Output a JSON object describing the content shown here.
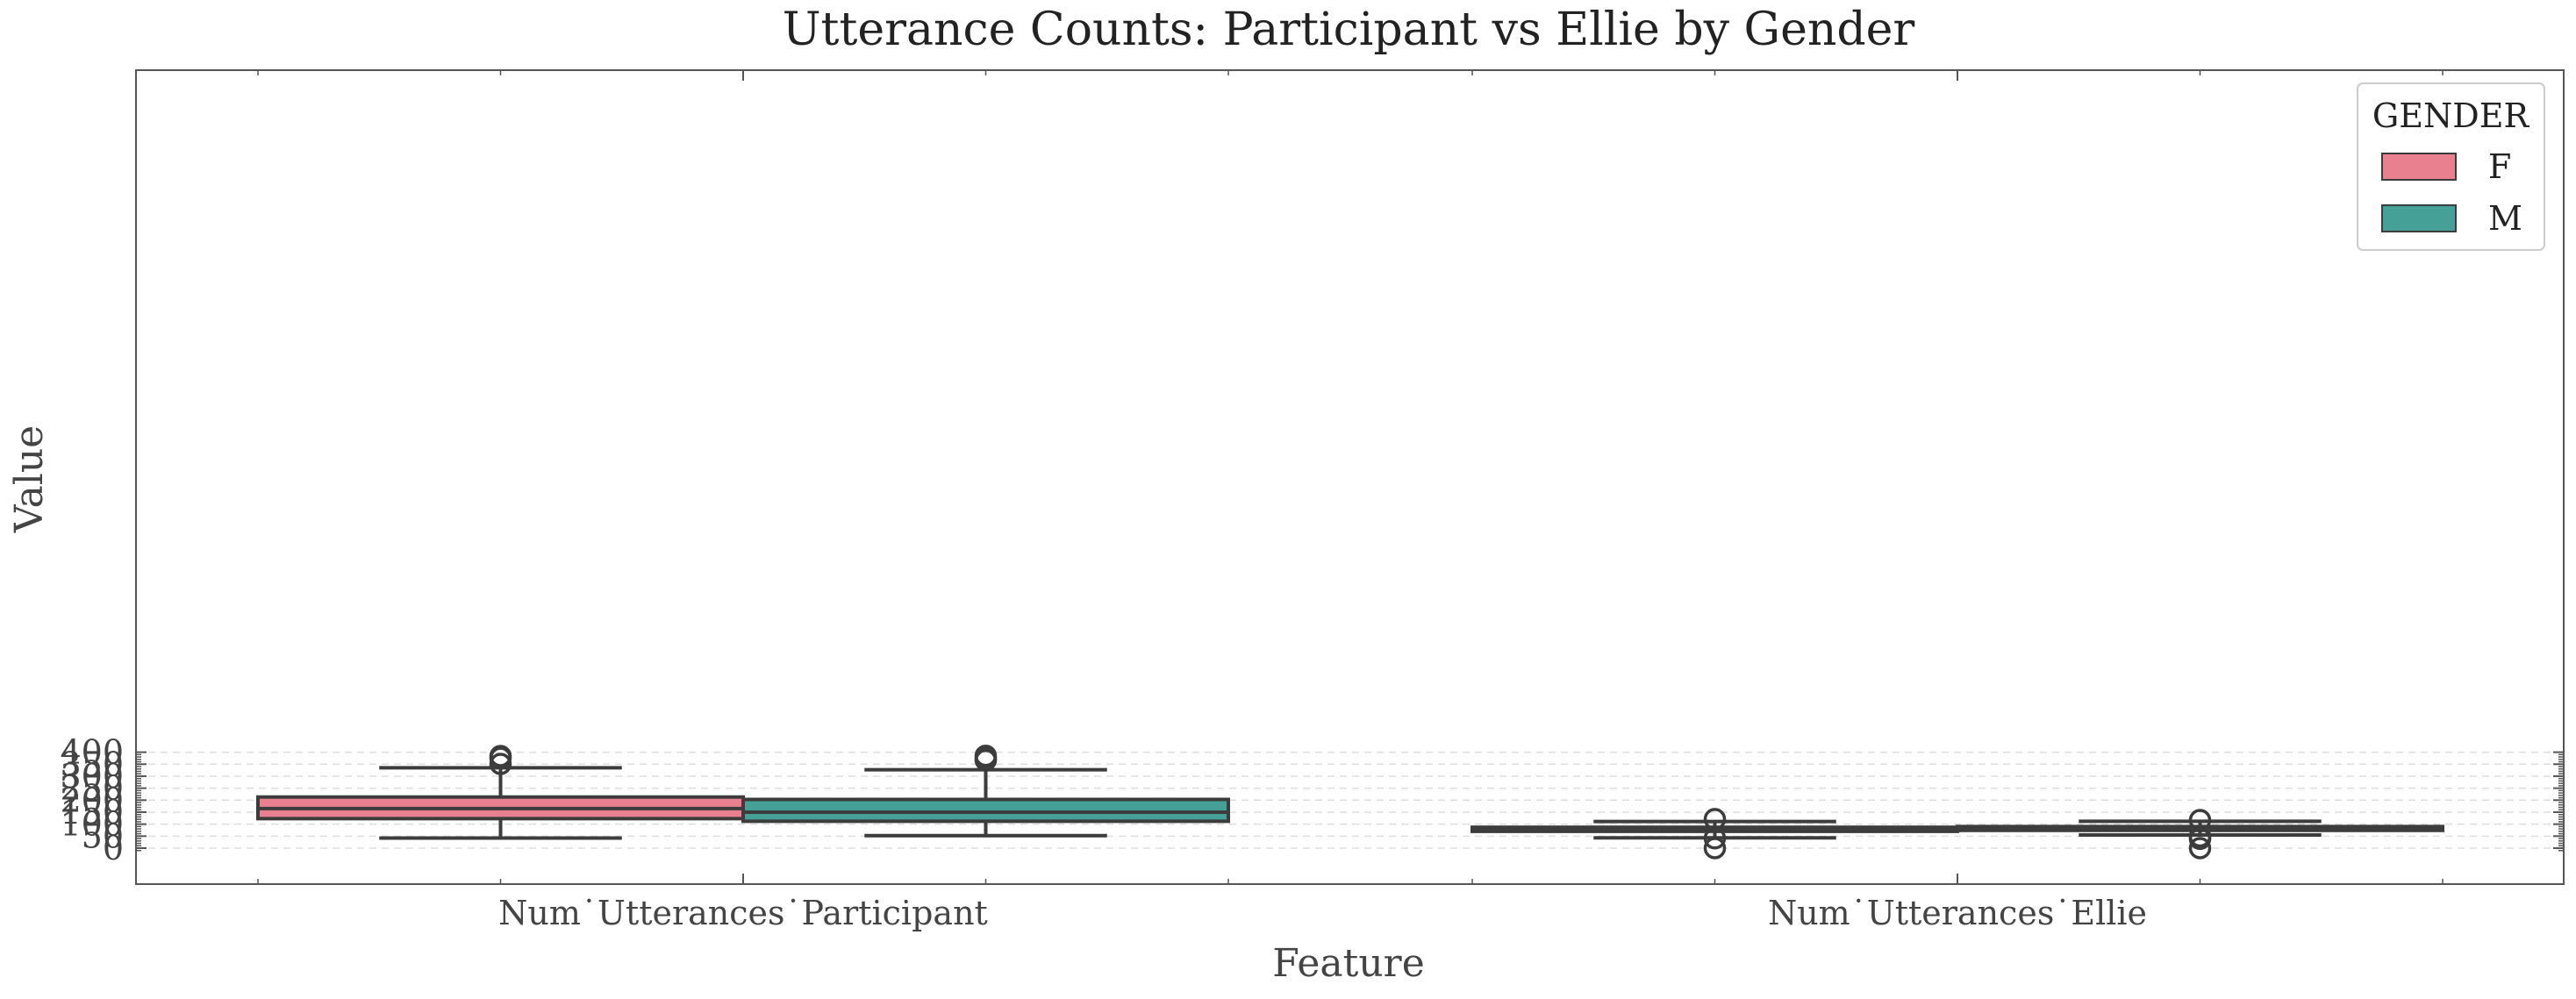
{
  "chart_data": {
    "type": "box",
    "title": "Utterance Counts: Participant vs Ellie by Gender",
    "xlabel": "Feature",
    "ylabel": "Value",
    "ylim": [
      -18,
      405
    ],
    "yticks": [
      0,
      50,
      100,
      150,
      200,
      250,
      300,
      350,
      400
    ],
    "grid": true,
    "legend": {
      "title": "GENDER",
      "placement": "top-right",
      "entries": [
        "F",
        "M"
      ]
    },
    "categories": [
      "Num˙Utterances˙Participant",
      "Num˙Utterances˙Ellie"
    ],
    "series": [
      {
        "name": "F",
        "color": "#e8808f",
        "boxes": [
          {
            "category": "Num˙Utterances˙Participant",
            "whisker_low": 42,
            "q1": 123,
            "median": 165,
            "q3": 213,
            "whisker_high": 335,
            "outliers": [
              351,
              376,
              384
            ]
          },
          {
            "category": "Num˙Utterances˙Ellie",
            "whisker_low": 43,
            "q1": 70,
            "median": 76,
            "q3": 87,
            "whisker_high": 111,
            "outliers": [
              0,
              41,
              121
            ]
          }
        ]
      },
      {
        "name": "M",
        "color": "#45a098",
        "boxes": [
          {
            "category": "Num˙Utterances˙Participant",
            "whisker_low": 52,
            "q1": 112,
            "median": 150,
            "q3": 203,
            "whisker_high": 327,
            "outliers": [
              367,
              368,
              378,
              385
            ]
          },
          {
            "category": "Num˙Utterances˙Ellie",
            "whisker_low": 55,
            "q1": 74,
            "median": 83,
            "q3": 90,
            "whisker_high": 112,
            "outliers": [
              0,
              39,
              42,
              49,
              117
            ]
          }
        ]
      }
    ]
  }
}
